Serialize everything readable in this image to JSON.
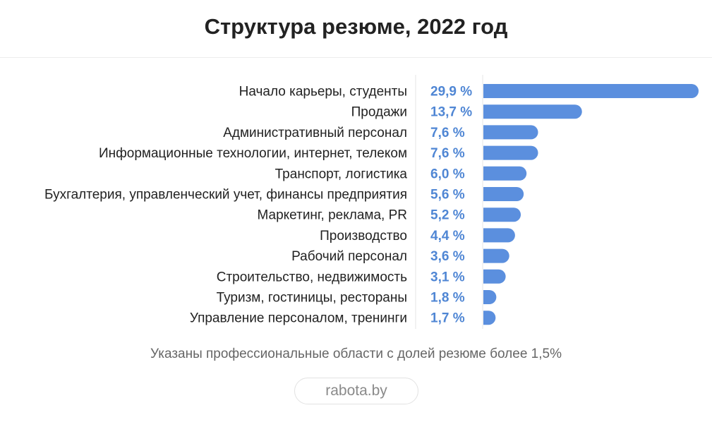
{
  "title": "Структура резюме, 2022 год",
  "note": "Указаны профессиональные области с долей резюме более 1,5%",
  "source": "rabota.by",
  "colors": {
    "bar": "#5b8fde",
    "value_label": "#4f86d4",
    "divider": "#e4e4e4"
  },
  "chart_data": {
    "type": "bar",
    "orientation": "horizontal",
    "title": "Структура резюме, 2022 год",
    "unit": "%",
    "categories": [
      "Начало карьеры, студенты",
      "Продажи",
      "Административный персонал",
      "Информационные технологии, интернет, телеком",
      "Транспорт, логистика",
      "Бухгалтерия, управленческий учет, финансы предприятия",
      "Маркетинг, реклама, PR",
      "Производство",
      "Рабочий персонал",
      "Строительство, недвижимость",
      "Туризм, гостиницы, рестораны",
      "Управление персоналом, тренинги"
    ],
    "values": [
      29.9,
      13.7,
      7.6,
      7.6,
      6.0,
      5.6,
      5.2,
      4.4,
      3.6,
      3.1,
      1.8,
      1.7
    ],
    "value_labels": [
      "29,9 %",
      "13,7 %",
      "7,6 %",
      "7,6 %",
      "6,0 %",
      "5,6 %",
      "5,2 %",
      "4,4 %",
      "3,6 %",
      "3,1 %",
      "1,8 %",
      "1,7 %"
    ],
    "xlim": [
      0,
      29.9
    ],
    "grid": false,
    "legend": "none"
  }
}
